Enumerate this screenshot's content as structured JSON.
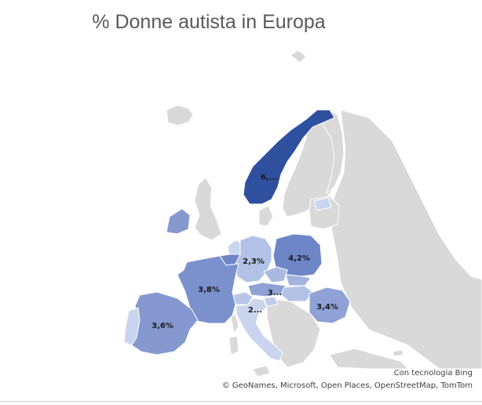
{
  "title": "% Donne autista in Europa",
  "credits": {
    "line1": "Con tecnologia Bing",
    "line2": "© GeoNames, Microsoft, Open Places, OpenStreetMap, TomTom"
  },
  "colors": {
    "no_data": "#d9d9d9",
    "scale_low": "#c9d5ee",
    "scale_high": "#2f4f9f",
    "border": "#ffffff"
  },
  "chart_data": {
    "type": "map",
    "regions": [
      {
        "country": "Norvegia",
        "label": "6,...",
        "color": "#2f4f9f"
      },
      {
        "country": "Polonia",
        "label": "4,2%",
        "color": "#6e86c8"
      },
      {
        "country": "Francia",
        "label": "3,8%",
        "color": "#7b91cd"
      },
      {
        "country": "Spagna",
        "label": "3,6%",
        "color": "#8598d0"
      },
      {
        "country": "Romania",
        "label": "3,4%",
        "color": "#8fa1d5"
      },
      {
        "country": "Austria",
        "label": "3...",
        "color": "#8fa1d5"
      },
      {
        "country": "Germania",
        "label": "2,3%",
        "color": "#b2c2e6"
      },
      {
        "country": "Svizzera",
        "label": "2...",
        "color": "#b7c6e8"
      },
      {
        "country": "Italia",
        "label": "",
        "color": "#c9d5ee"
      },
      {
        "country": "Portogallo",
        "label": "",
        "color": "#c9d5ee"
      },
      {
        "country": "Irlanda",
        "label": "",
        "color": "#8598d0"
      },
      {
        "country": "Repubblica Ceca",
        "label": "",
        "color": "#a9b9e2"
      },
      {
        "country": "Belgio",
        "label": "",
        "color": "#6e86c8"
      },
      {
        "country": "Paesi Bassi",
        "label": "",
        "color": "#c9d5ee"
      },
      {
        "country": "Slovacchia",
        "label": "",
        "color": "#a2b3de"
      },
      {
        "country": "Ungheria",
        "label": "",
        "color": "#b2c2e6"
      },
      {
        "country": "Slovenia",
        "label": "",
        "color": "#c0cdea"
      },
      {
        "country": "Estonia",
        "label": "",
        "color": "#c9d5ee"
      }
    ]
  }
}
